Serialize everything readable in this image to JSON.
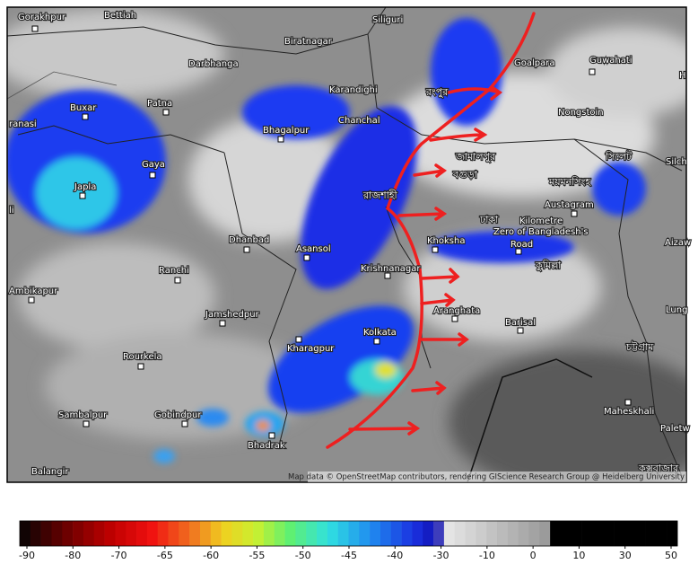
{
  "map": {
    "places": [
      "Gorakhpur",
      "Bettiah",
      "Siliguri",
      "Biratnagar",
      "Darbhanga",
      "Goalpara",
      "Guwahati",
      "Karandighi",
      "Buxar",
      "Patna",
      "Chanchal",
      "Nongstoin",
      "ranasi",
      "Bhagalpur",
      "Gaya",
      "Silch",
      "Japla",
      "Austagram",
      "Kilometre",
      "Zero of Bangladesh's",
      "Road",
      "Dhanbad",
      "Asansol",
      "Khoksha",
      "Aizaw",
      "Ranchi",
      "Krishnanagar",
      "Ambikapur",
      "Jamshedpur",
      "Aranghata",
      "Barisal",
      "Lung",
      "Kolkata",
      "Kharagpur",
      "Rourkela",
      "Maheskhali",
      "Sambalpur",
      "Gobindpur",
      "Paletw",
      "Bhadrak",
      "Balangir",
      "li",
      "H"
    ],
    "bengali_places": [
      "রংপুর",
      "জামালপুর",
      "বগুড়া",
      "ময়মনসিংহ",
      "রাজশাহী",
      "ঢাকা",
      "সিলেট",
      "কুমিল্লা",
      "চট্টগ্রাম",
      "কক্সবাজার"
    ],
    "attribution": "Map data © OpenStreetMap contributors, rendering GIScience Research Group @ Heidelberg University"
  },
  "colorbar": {
    "ticks": [
      -90,
      -80,
      -70,
      -65,
      -60,
      -55,
      -50,
      -45,
      -40,
      -30,
      -10,
      0,
      10,
      30,
      50
    ]
  }
}
